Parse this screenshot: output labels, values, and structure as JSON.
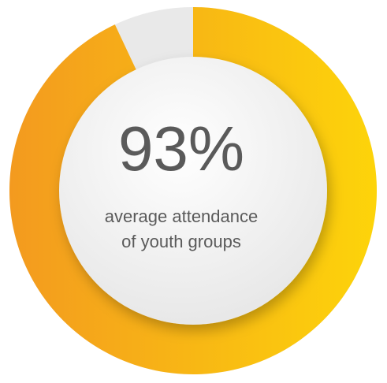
{
  "chart_data": {
    "type": "donut",
    "values": [
      93
    ],
    "value_labels": [
      "93%"
    ],
    "caption": [
      "average attendance",
      "of youth groups"
    ],
    "ylim": [
      0,
      100
    ],
    "color": "#f7a81b",
    "track_color": "#e9e9e9"
  }
}
